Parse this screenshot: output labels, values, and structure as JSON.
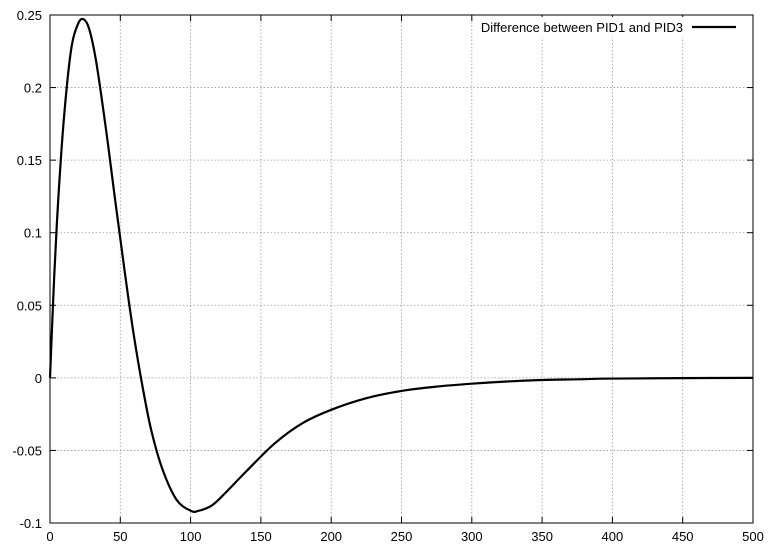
{
  "chart_data": {
    "type": "line",
    "title": "",
    "xlabel": "",
    "ylabel": "",
    "xlim": [
      0,
      500
    ],
    "ylim": [
      -0.1,
      0.25
    ],
    "xticks": [
      0,
      50,
      100,
      150,
      200,
      250,
      300,
      350,
      400,
      450,
      500
    ],
    "yticks": [
      -0.1,
      -0.05,
      0,
      0.05,
      0.1,
      0.15,
      0.2,
      0.25
    ],
    "xtick_labels": [
      "0",
      "50",
      "100",
      "150",
      "200",
      "250",
      "300",
      "350",
      "400",
      "450",
      "500"
    ],
    "ytick_labels": [
      "-0.1",
      "-0.05",
      "0",
      "0.05",
      "0.1",
      "0.15",
      "0.2",
      "0.25"
    ],
    "grid": true,
    "legend_position": "top-right",
    "series": [
      {
        "name": "Difference between PID1 and PID3",
        "color": "#000000",
        "x": [
          0,
          3,
          6,
          10,
          15,
          20,
          24,
          28,
          33,
          40,
          46,
          50,
          55,
          60,
          66,
          72,
          80,
          90,
          100,
          105,
          115,
          125,
          140,
          160,
          180,
          200,
          225,
          250,
          275,
          300,
          325,
          350,
          375,
          400,
          450,
          500
        ],
        "y": [
          0,
          0.07,
          0.125,
          0.18,
          0.226,
          0.244,
          0.247,
          0.24,
          0.217,
          0.17,
          0.125,
          0.096,
          0.06,
          0.027,
          -0.007,
          -0.036,
          -0.063,
          -0.084,
          -0.0915,
          -0.0918,
          -0.088,
          -0.079,
          -0.064,
          -0.045,
          -0.031,
          -0.022,
          -0.014,
          -0.009,
          -0.006,
          -0.004,
          -0.0025,
          -0.0015,
          -0.001,
          -0.0005,
          -0.0002,
          0
        ]
      }
    ]
  }
}
